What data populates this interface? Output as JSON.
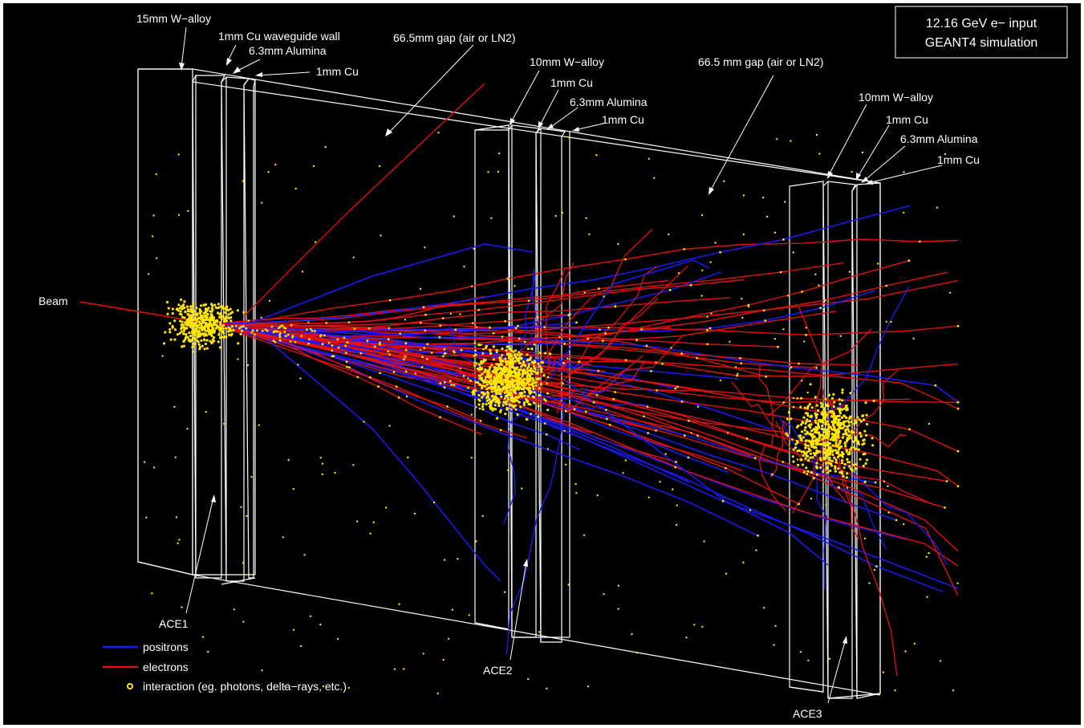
{
  "info_box": {
    "line1": "12.16 GeV e− input",
    "line2": "GEANT4 simulation"
  },
  "beam_label": "Beam",
  "layer_labels": {
    "ace1_w": "15mm W−alloy",
    "ace1_cu1": "1mm Cu waveguide wall",
    "ace1_al": "6.3mm Alumina",
    "ace1_cu2": "1mm Cu",
    "gap1": "66.5mm gap (air or LN2)",
    "ace2_w": "10mm W−alloy",
    "ace2_cu1": "1mm Cu",
    "ace2_al": "6.3mm Alumina",
    "ace2_cu2": "1mm Cu",
    "gap2": "66.5 mm gap (air or LN2)",
    "ace3_w": "10mm W−alloy",
    "ace3_cu1": "1mm Cu",
    "ace3_al": "6.3mm Alumina",
    "ace3_cu2": "1mm Cu"
  },
  "ace_labels": {
    "ace1": "ACE1",
    "ace2": "ACE2",
    "ace3": "ACE3"
  },
  "legend": {
    "positrons": "positrons",
    "electrons": "electrons",
    "interaction": "interaction (eg. photons, delta−rays, etc.)"
  },
  "colors": {
    "background": "#000000",
    "frame": "#ffffff",
    "positron": "#1a1aff",
    "electron": "#e01010",
    "interaction": "#ffe600"
  }
}
